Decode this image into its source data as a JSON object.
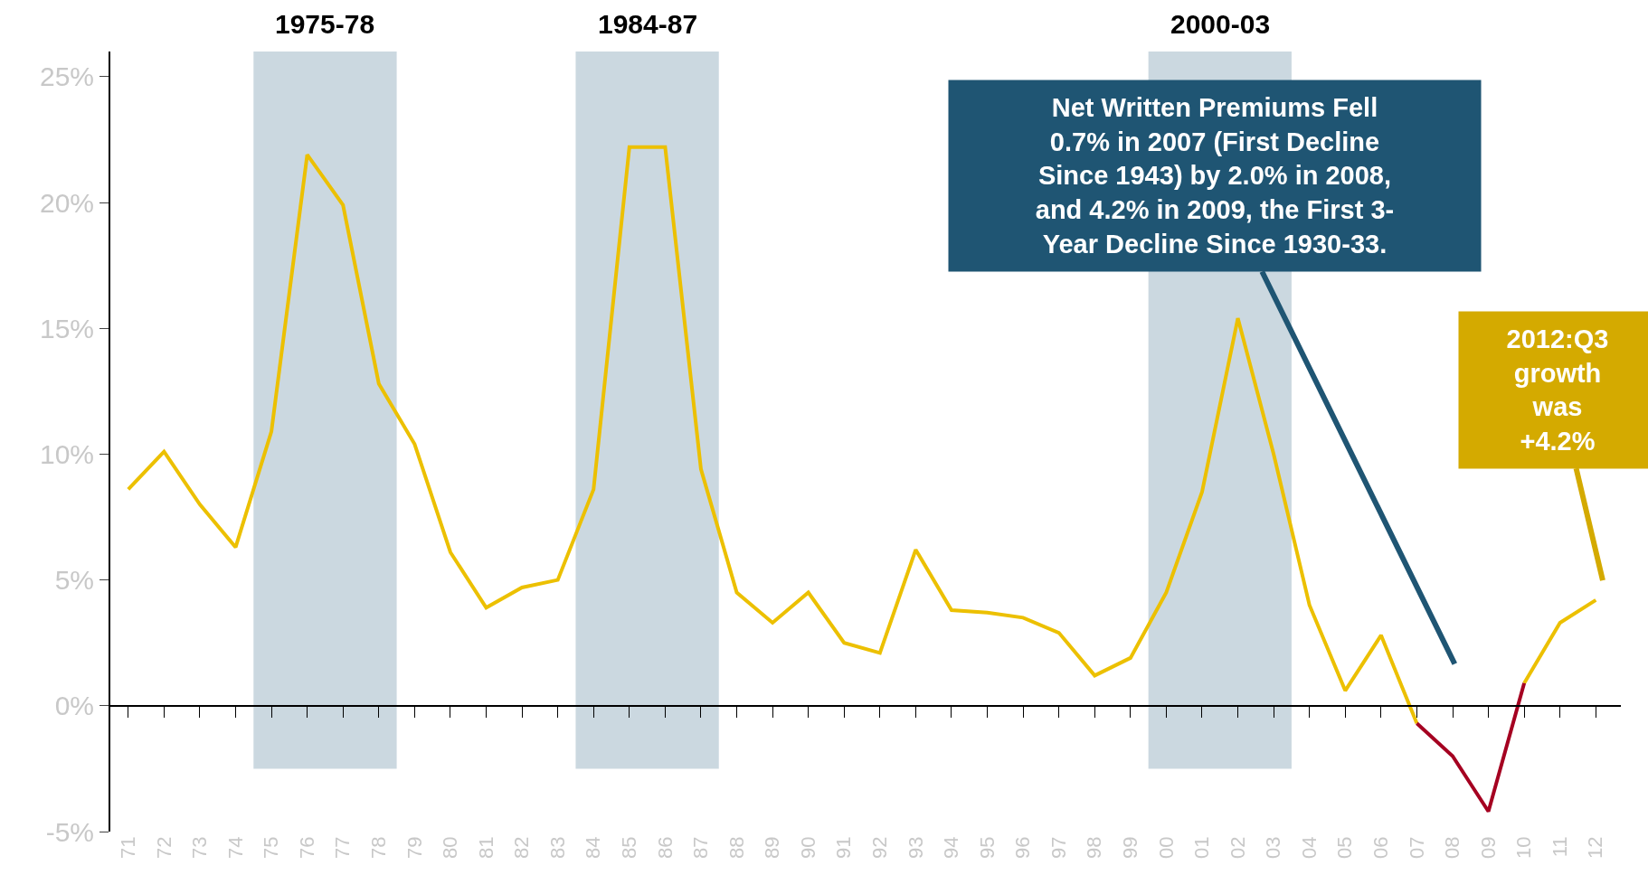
{
  "chart_data": {
    "type": "line",
    "categories": [
      "71",
      "72",
      "73",
      "74",
      "75",
      "76",
      "77",
      "78",
      "79",
      "80",
      "81",
      "82",
      "83",
      "84",
      "85",
      "86",
      "87",
      "88",
      "89",
      "90",
      "91",
      "92",
      "93",
      "94",
      "95",
      "96",
      "97",
      "98",
      "99",
      "00",
      "01",
      "02",
      "03",
      "04",
      "05",
      "06",
      "07",
      "08",
      "09",
      "10",
      "11",
      "12"
    ],
    "series": [
      {
        "color": "#ecc000",
        "values": [
          8.6,
          10.1,
          8.0,
          6.3,
          10.9,
          21.9,
          19.9,
          12.8,
          10.4,
          6.1,
          3.9,
          4.7,
          5.0,
          8.6,
          22.2,
          22.2,
          9.4,
          4.5,
          3.3,
          4.5,
          2.5,
          2.1,
          6.2,
          3.8,
          3.7,
          3.5,
          2.9,
          1.2,
          1.9,
          4.5,
          8.5,
          15.4,
          10.0,
          4.0,
          0.6,
          2.8,
          -0.7,
          null,
          null,
          0.9,
          3.3,
          4.2
        ]
      },
      {
        "color": "#a50021",
        "values": [
          null,
          null,
          null,
          null,
          null,
          null,
          null,
          null,
          null,
          null,
          null,
          null,
          null,
          null,
          null,
          null,
          null,
          null,
          null,
          null,
          null,
          null,
          null,
          null,
          null,
          null,
          null,
          null,
          null,
          null,
          null,
          null,
          null,
          null,
          null,
          null,
          -0.7,
          -2.0,
          -4.2,
          0.9,
          null,
          null
        ]
      }
    ],
    "ylim": [
      -5,
      26
    ],
    "yticks": [
      {
        "value": -5,
        "label": "-5%"
      },
      {
        "value": 0,
        "label": "0%"
      },
      {
        "value": 5,
        "label": "5%"
      },
      {
        "value": 10,
        "label": "10%"
      },
      {
        "value": 15,
        "label": "15%"
      },
      {
        "value": 20,
        "label": "20%"
      },
      {
        "value": 25,
        "label": "25%"
      }
    ],
    "bands": [
      {
        "axis": "x",
        "from": "75",
        "to": "78",
        "label": "1975-78",
        "color": "#cbd8e0"
      },
      {
        "axis": "x",
        "from": "84",
        "to": "87",
        "label": "1984-87",
        "color": "#cbd8e0"
      },
      {
        "axis": "x",
        "from": "00",
        "to": "03",
        "label": "2000-03",
        "color": "#cbd8e0"
      }
    ],
    "annotations": [
      "Net Written Premiums Fell\n0.7% in 2007 (First Decline\nSince 1943) by 2.0% in 2008,\nand 4.2% in 2009, the First 3-\nYear Decline Since 1930-33.",
      "2012:Q3\ngrowth\nwas\n+4.2%"
    ]
  }
}
